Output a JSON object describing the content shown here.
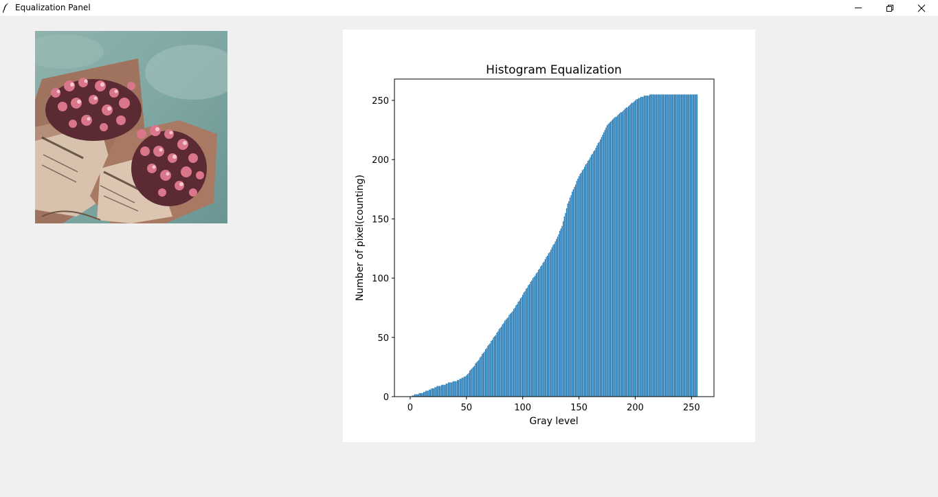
{
  "window": {
    "title": "Equalization Panel",
    "icons": {
      "app": "feather-icon",
      "minimize": "minimize-icon",
      "maximize": "restore-icon",
      "close": "close-icon"
    }
  },
  "image": {
    "description_icon": "flower-bouquet-photo"
  },
  "colors": {
    "window_bg": "#f0f0f0",
    "titlebar_bg": "#ffffff",
    "bar": "#1f77b4",
    "panel_bg": "#ffffff"
  },
  "chart_data": {
    "type": "bar",
    "title": "Histogram Equalization",
    "xlabel": "Gray level",
    "ylabel": "Number of pixel(counting)",
    "xlim": [
      -14,
      270
    ],
    "ylim": [
      0,
      268
    ],
    "xticks": [
      "0",
      "50",
      "100",
      "150",
      "200",
      "250"
    ],
    "yticks": [
      "0",
      "50",
      "100",
      "150",
      "200",
      "250"
    ],
    "grid": false,
    "bar_x_start": 0,
    "bar_x_end": 255,
    "cdf_points": [
      [
        0,
        0
      ],
      [
        5,
        2
      ],
      [
        10,
        3
      ],
      [
        15,
        5
      ],
      [
        20,
        7
      ],
      [
        25,
        9
      ],
      [
        30,
        10
      ],
      [
        35,
        12
      ],
      [
        40,
        13
      ],
      [
        45,
        15
      ],
      [
        50,
        18
      ],
      [
        55,
        24
      ],
      [
        60,
        30
      ],
      [
        65,
        37
      ],
      [
        70,
        44
      ],
      [
        75,
        51
      ],
      [
        80,
        58
      ],
      [
        85,
        65
      ],
      [
        90,
        71
      ],
      [
        95,
        78
      ],
      [
        100,
        86
      ],
      [
        105,
        94
      ],
      [
        110,
        101
      ],
      [
        115,
        108
      ],
      [
        120,
        116
      ],
      [
        125,
        124
      ],
      [
        130,
        133
      ],
      [
        135,
        144
      ],
      [
        140,
        163
      ],
      [
        145,
        175
      ],
      [
        150,
        186
      ],
      [
        155,
        194
      ],
      [
        160,
        202
      ],
      [
        165,
        210
      ],
      [
        170,
        219
      ],
      [
        175,
        229
      ],
      [
        180,
        234
      ],
      [
        185,
        238
      ],
      [
        190,
        242
      ],
      [
        195,
        246
      ],
      [
        200,
        250
      ],
      [
        205,
        253
      ],
      [
        210,
        254
      ],
      [
        215,
        255
      ],
      [
        255,
        255
      ]
    ]
  }
}
